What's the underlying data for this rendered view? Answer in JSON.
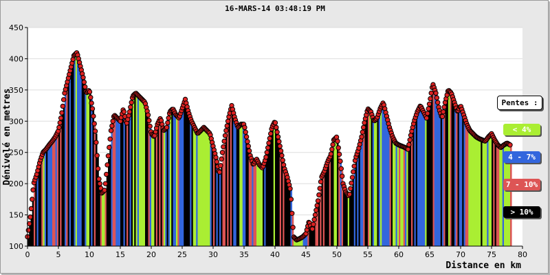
{
  "title": "16-MARS-14 03:48:19 PM",
  "legend": {
    "title": "Pentes :",
    "items": [
      {
        "label": "< 4%",
        "color": "#aaee33",
        "text_color": "#ffffff"
      },
      {
        "label": "4 - 7%",
        "color": "#3366dd",
        "text_color": "#ffffff"
      },
      {
        "label": "7 - 10%",
        "color": "#dd5555",
        "text_color": "#ffffff"
      },
      {
        "label": "> 10%",
        "color": "#000000",
        "text_color": "#ffffff"
      }
    ]
  },
  "chart_data": {
    "type": "area",
    "title": "16-MARS-14 03:48:19 PM",
    "xlabel": "Distance en km",
    "ylabel": "Dénivelé en metres",
    "xlim": [
      0,
      80
    ],
    "ylim": [
      100,
      450
    ],
    "xticks": [
      0,
      5,
      10,
      15,
      20,
      25,
      30,
      35,
      40,
      45,
      50,
      55,
      60,
      65,
      70,
      75,
      80
    ],
    "yticks": [
      100,
      150,
      200,
      250,
      300,
      350,
      400,
      450
    ],
    "grid": true,
    "marker_color": "#dd2222",
    "series": [
      {
        "x": [
          0,
          0.5,
          1,
          1.5,
          2,
          2.5,
          3,
          3.5,
          4,
          4.5,
          5,
          5.5,
          6,
          6.5,
          7,
          7.5,
          8,
          8.5,
          9,
          9.5,
          10,
          10.5,
          11,
          11.5,
          12,
          12.5,
          13,
          13.5,
          14,
          14.5,
          15,
          15.5,
          16,
          16.5,
          17,
          17.5,
          18,
          18.5,
          19,
          19.5,
          20,
          20.5,
          21,
          21.5,
          22,
          22.5,
          23,
          23.5,
          24,
          24.5,
          25,
          25.5,
          26,
          26.5,
          27,
          27.5,
          28,
          28.5,
          29,
          29.5,
          30,
          30.5,
          31,
          31.5,
          32,
          32.5,
          33,
          33.5,
          34,
          34.5,
          35,
          35.5,
          36,
          36.5,
          37,
          37.5,
          38,
          38.5,
          39,
          39.5,
          40,
          40.5,
          41,
          41.5,
          42,
          42.5,
          43,
          43.5,
          44,
          44.5,
          45,
          45.5,
          46,
          46.5,
          47,
          47.5,
          48,
          48.5,
          49,
          49.5,
          50,
          50.5,
          51,
          51.5,
          52,
          52.5,
          53,
          53.5,
          54,
          54.5,
          55,
          55.5,
          56,
          56.5,
          57,
          57.5,
          58,
          58.5,
          59,
          59.5,
          60,
          60.5,
          61,
          61.5,
          62,
          62.5,
          63,
          63.5,
          64,
          64.5,
          65,
          65.5,
          66,
          66.5,
          67,
          67.5,
          68,
          68.5,
          69,
          69.5,
          70,
          70.5,
          71,
          71.5,
          72,
          72.5,
          73,
          73.5,
          74,
          74.5,
          75,
          75.5,
          76,
          76.5,
          77,
          77.5,
          78
        ],
        "y": [
          115,
          150,
          200,
          215,
          235,
          250,
          255,
          262,
          268,
          275,
          285,
          310,
          345,
          365,
          385,
          405,
          410,
          390,
          370,
          345,
          350,
          320,
          280,
          210,
          185,
          190,
          240,
          285,
          310,
          305,
          300,
          320,
          295,
          315,
          340,
          345,
          340,
          335,
          330,
          310,
          280,
          275,
          295,
          305,
          285,
          290,
          315,
          320,
          310,
          305,
          320,
          335,
          315,
          300,
          290,
          280,
          285,
          290,
          285,
          280,
          260,
          240,
          215,
          250,
          280,
          305,
          325,
          305,
          290,
          295,
          295,
          270,
          245,
          230,
          240,
          230,
          225,
          240,
          265,
          290,
          300,
          275,
          250,
          225,
          210,
          190,
          115,
          110,
          112,
          115,
          120,
          140,
          125,
          150,
          175,
          210,
          220,
          235,
          245,
          270,
          275,
          240,
          200,
          185,
          180,
          210,
          240,
          255,
          275,
          300,
          320,
          315,
          300,
          305,
          320,
          330,
          310,
          290,
          275,
          265,
          262,
          260,
          258,
          255,
          280,
          300,
          315,
          325,
          315,
          305,
          330,
          360,
          345,
          320,
          305,
          330,
          350,
          345,
          330,
          315,
          325,
          310,
          295,
          285,
          280,
          275,
          272,
          270,
          268,
          275,
          280,
          270,
          262,
          258,
          262,
          265,
          262
        ]
      }
    ]
  }
}
